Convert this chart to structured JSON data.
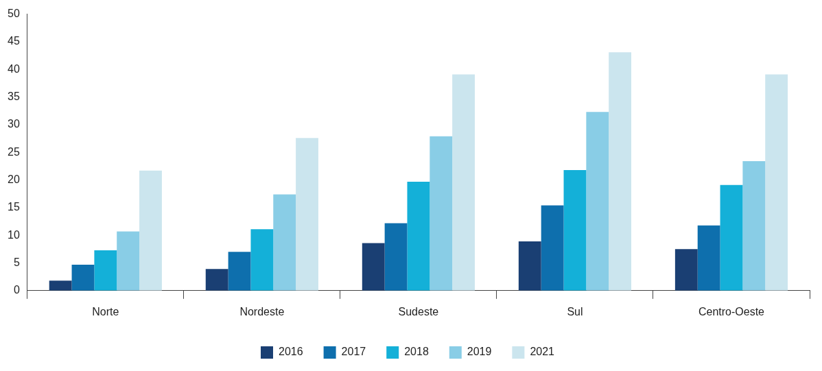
{
  "chart_data": {
    "type": "bar",
    "categories": [
      "Norte",
      "Nordeste",
      "Sudeste",
      "Sul",
      "Centro-Oeste"
    ],
    "series": [
      {
        "name": "2016",
        "color": "#1a3f73",
        "values": [
          1.8,
          3.9,
          8.6,
          8.9,
          7.5
        ]
      },
      {
        "name": "2017",
        "color": "#0e6fad",
        "values": [
          4.7,
          7.0,
          12.2,
          15.4,
          11.8
        ]
      },
      {
        "name": "2018",
        "color": "#14b0d8",
        "values": [
          7.3,
          11.1,
          19.7,
          21.8,
          19.1
        ]
      },
      {
        "name": "2019",
        "color": "#89cde6",
        "values": [
          10.7,
          17.4,
          27.9,
          32.3,
          23.4
        ]
      },
      {
        "name": "2021",
        "color": "#cbe5ee",
        "values": [
          21.7,
          27.6,
          39.1,
          43.1,
          39.1
        ]
      }
    ],
    "ylim": [
      0,
      50
    ],
    "yticks": [
      0,
      5,
      10,
      15,
      20,
      25,
      30,
      35,
      40,
      45,
      50
    ],
    "grid": false,
    "legend": "bottom"
  }
}
